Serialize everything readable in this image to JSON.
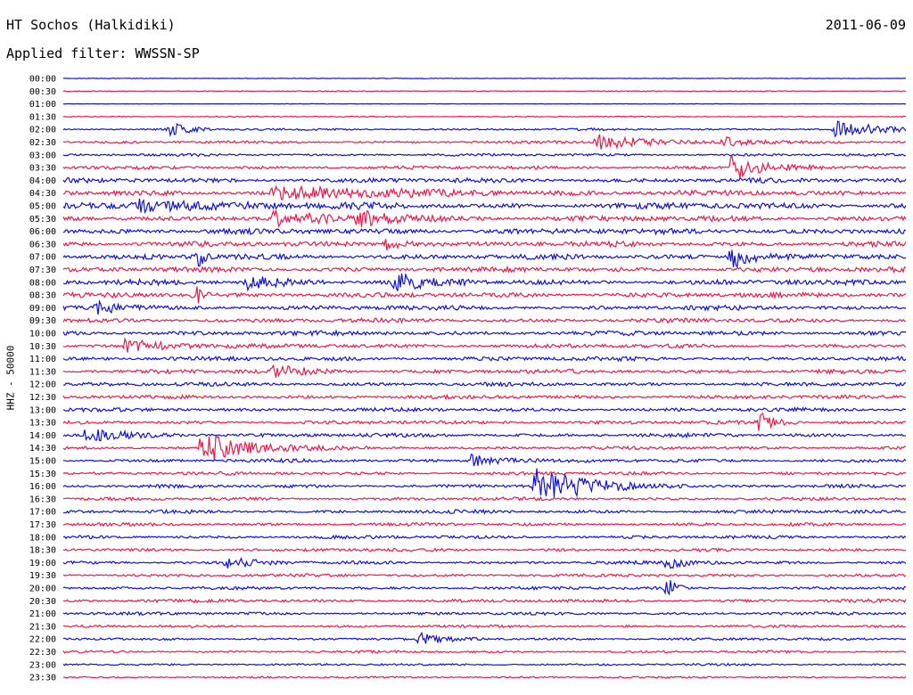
{
  "header": {
    "station": "HT Sochos (Halkidiki)",
    "date": "2011-06-09",
    "filter_label": "Applied filter:",
    "filter_name": "WWSSN-SP",
    "channel_label": "HHZ - 50000"
  },
  "colors": {
    "blue_trace": "#1010e0",
    "red_trace": "#f0184a",
    "text": "#000000"
  },
  "chart_data": {
    "type": "line",
    "subtype": "helicorder",
    "title": "HT Sochos (Halkidiki)",
    "ylabel": "HHZ - 50000",
    "row_labels": [
      "00:00",
      "00:30",
      "01:00",
      "01:30",
      "02:00",
      "02:30",
      "03:00",
      "03:30",
      "04:00",
      "04:30",
      "05:00",
      "05:30",
      "06:00",
      "06:30",
      "07:00",
      "07:30",
      "08:00",
      "08:30",
      "09:00",
      "09:30",
      "10:00",
      "10:30",
      "11:00",
      "11:30",
      "12:00",
      "12:30",
      "13:00",
      "13:30",
      "14:00",
      "14:30",
      "15:00",
      "15:30",
      "16:00",
      "16:30",
      "17:00",
      "17:30",
      "18:00",
      "18:30",
      "19:00",
      "19:30",
      "20:00",
      "20:30",
      "21:00",
      "21:30",
      "22:00",
      "22:30",
      "23:00",
      "23:30"
    ],
    "row_noise": [
      0.3,
      0.4,
      0.2,
      0.5,
      1.0,
      1.2,
      1.2,
      1.6,
      2.2,
      2.4,
      2.8,
      2.6,
      2.6,
      2.4,
      2.4,
      2.3,
      2.4,
      2.3,
      2.1,
      2.0,
      2.1,
      1.9,
      1.9,
      1.9,
      1.8,
      1.7,
      1.7,
      1.7,
      1.8,
      1.6,
      1.6,
      1.5,
      1.6,
      1.5,
      1.6,
      1.5,
      1.5,
      1.5,
      1.5,
      1.4,
      1.4,
      1.5,
      1.4,
      1.2,
      1.2,
      1.1,
      1.0,
      0.9
    ],
    "events": [
      {
        "row": 4,
        "t": 3.8,
        "amp": 10,
        "dur": 0.5
      },
      {
        "row": 4,
        "t": 27.5,
        "amp": 11,
        "dur": 1.2
      },
      {
        "row": 5,
        "t": 19.0,
        "amp": 9,
        "dur": 1.5
      },
      {
        "row": 5,
        "t": 23.5,
        "amp": 6,
        "dur": 1.0
      },
      {
        "row": 7,
        "t": 23.8,
        "amp": 14,
        "dur": 1.0
      },
      {
        "row": 9,
        "t": 7.5,
        "amp": 7,
        "dur": 4.0
      },
      {
        "row": 10,
        "t": 2.5,
        "amp": 7,
        "dur": 3.0
      },
      {
        "row": 11,
        "t": 7.5,
        "amp": 8,
        "dur": 1.5
      },
      {
        "row": 11,
        "t": 10.5,
        "amp": 7,
        "dur": 1.5
      },
      {
        "row": 13,
        "t": 11.5,
        "amp": 6,
        "dur": 0.8
      },
      {
        "row": 14,
        "t": 4.8,
        "amp": 12,
        "dur": 0.2
      },
      {
        "row": 14,
        "t": 23.8,
        "amp": 13,
        "dur": 0.8
      },
      {
        "row": 16,
        "t": 6.5,
        "amp": 9,
        "dur": 1.0
      },
      {
        "row": 16,
        "t": 11.8,
        "amp": 10,
        "dur": 1.0
      },
      {
        "row": 17,
        "t": 4.7,
        "amp": 13,
        "dur": 0.2
      },
      {
        "row": 18,
        "t": 1.2,
        "amp": 7,
        "dur": 0.8
      },
      {
        "row": 21,
        "t": 2.2,
        "amp": 7,
        "dur": 1.5
      },
      {
        "row": 23,
        "t": 7.5,
        "amp": 8,
        "dur": 1.0
      },
      {
        "row": 27,
        "t": 24.8,
        "amp": 10,
        "dur": 0.5
      },
      {
        "row": 28,
        "t": 0.8,
        "amp": 7,
        "dur": 1.5
      },
      {
        "row": 29,
        "t": 4.9,
        "amp": 18,
        "dur": 1.5
      },
      {
        "row": 30,
        "t": 14.5,
        "amp": 7,
        "dur": 1.0
      },
      {
        "row": 32,
        "t": 16.8,
        "amp": 20,
        "dur": 1.8
      },
      {
        "row": 38,
        "t": 5.8,
        "amp": 6,
        "dur": 1.0
      },
      {
        "row": 38,
        "t": 21.5,
        "amp": 6,
        "dur": 0.8
      },
      {
        "row": 40,
        "t": 21.5,
        "amp": 12,
        "dur": 0.3
      },
      {
        "row": 44,
        "t": 12.7,
        "amp": 6,
        "dur": 0.8
      }
    ]
  }
}
